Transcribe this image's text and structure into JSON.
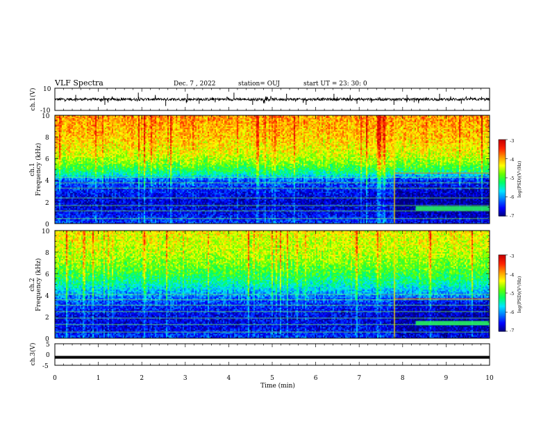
{
  "header": {
    "title": "VLF Spectra",
    "date": "Dec. 7 , 2022",
    "station": "station= OUJ",
    "start_ut": "start  UT  =   23: 30: 0"
  },
  "chart_data": [
    {
      "type": "line",
      "panel": "ch1-waveform",
      "ylabel": "ch.1(V)",
      "ylim": [
        -10,
        10
      ],
      "yticks": [
        "10",
        "-10"
      ],
      "x_unit": "min",
      "xlim": [
        0,
        10
      ],
      "baseline": 0,
      "noise_amplitude": 2,
      "spikes": [
        {
          "x": 0.48,
          "y": 4
        },
        {
          "x": 1.15,
          "y": -5
        },
        {
          "x": 1.92,
          "y": 6
        },
        {
          "x": 2.55,
          "y": -6
        },
        {
          "x": 3.05,
          "y": 5
        },
        {
          "x": 3.32,
          "y": -4
        },
        {
          "x": 4.12,
          "y": 6
        },
        {
          "x": 4.55,
          "y": -5
        },
        {
          "x": 5.33,
          "y": 5
        },
        {
          "x": 5.78,
          "y": -5
        },
        {
          "x": 6.42,
          "y": 5
        },
        {
          "x": 6.95,
          "y": -4
        },
        {
          "x": 7.8,
          "y": -5
        },
        {
          "x": 8.1,
          "y": 4
        },
        {
          "x": 8.85,
          "y": 5
        },
        {
          "x": 9.35,
          "y": -4
        }
      ]
    },
    {
      "type": "heatmap",
      "panel": "ch1-spectrogram",
      "ylabel_line1": "ch.1",
      "ylabel_line2": "Frequency  (kHz)",
      "ylim": [
        0,
        10
      ],
      "yticks": [
        "0",
        "2",
        "4",
        "6",
        "8",
        "10"
      ],
      "xlim": [
        0,
        10
      ],
      "zlim": [
        -7,
        -3
      ],
      "colorbar_ticks": [
        "-3",
        "-4",
        "-5",
        "-6",
        "-7"
      ],
      "colorbar_label": "log(PSD)(V²/Hz)",
      "colormap": [
        "#00007a",
        "#0000ff",
        "#0077ff",
        "#00e5ff",
        "#00ff66",
        "#66ff00",
        "#ffff00",
        "#ff9900",
        "#ff2200",
        "#c80000"
      ],
      "level_profile_khz": [
        0,
        1,
        2,
        3,
        4,
        4.6,
        5.5,
        6.5,
        8,
        10
      ],
      "level_profile_psd": [
        -6.3,
        -6.6,
        -6.7,
        -6.5,
        -6.2,
        -5.4,
        -4.8,
        -4.4,
        -4.1,
        -3.9
      ],
      "horizontal_lines_khz": [
        0.5,
        1.2,
        1.7,
        2.4,
        3.3,
        3.8,
        4.3
      ],
      "event_start_min": 7.8,
      "event_line_khz": 4.7,
      "event_band_start_min": 8.3,
      "event_band_khz": [
        1.2,
        1.6
      ]
    },
    {
      "type": "heatmap",
      "panel": "ch2-spectrogram",
      "ylabel_line1": "ch.2",
      "ylabel_line2": "Frequency  (kHz)",
      "ylim": [
        0,
        10
      ],
      "yticks": [
        "0",
        "2",
        "4",
        "6",
        "8",
        "10"
      ],
      "xlim": [
        0,
        10
      ],
      "zlim": [
        -7,
        -3
      ],
      "colorbar_ticks": [
        "-3",
        "-4",
        "-5",
        "-6",
        "-7"
      ],
      "colorbar_label": "log(PSD)(V²/Hz)",
      "colormap": [
        "#00007a",
        "#0000ff",
        "#0077ff",
        "#00e5ff",
        "#00ff66",
        "#66ff00",
        "#ffff00",
        "#ff9900",
        "#ff2200",
        "#c80000"
      ],
      "level_profile_khz": [
        0,
        1,
        2,
        3,
        4,
        5,
        6,
        7,
        8,
        10
      ],
      "level_profile_psd": [
        -6.3,
        -6.6,
        -6.6,
        -6.4,
        -6.0,
        -5.4,
        -5.0,
        -4.7,
        -4.5,
        -4.3
      ],
      "horizontal_lines_khz": [
        0.6,
        1.3,
        1.9,
        2.5,
        3.1,
        3.6,
        4.1
      ],
      "event_start_min": 7.8,
      "event_line_khz": 3.7,
      "event_band_start_min": 8.3,
      "event_band_khz": [
        1.2,
        1.6
      ]
    },
    {
      "type": "line",
      "panel": "ch3-signal",
      "ylabel": "ch.3(V)",
      "ylim": [
        -5,
        5
      ],
      "yticks": [
        "5",
        "0",
        "-5"
      ],
      "xlim": [
        0,
        10
      ],
      "xticks": [
        "0",
        "1",
        "2",
        "3",
        "4",
        "5",
        "6",
        "7",
        "8",
        "9",
        "10"
      ],
      "xlabel": "Time  (min)",
      "constant_value": -1.3
    }
  ],
  "colors": {
    "axis": "#000000",
    "trace": "#000000"
  }
}
